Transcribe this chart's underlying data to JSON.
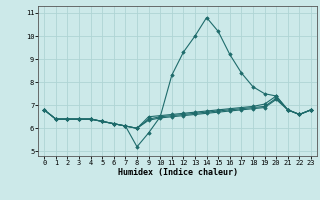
{
  "title": "",
  "xlabel": "Humidex (Indice chaleur)",
  "xlim": [
    -0.5,
    23.5
  ],
  "ylim": [
    4.8,
    11.3
  ],
  "yticks": [
    5,
    6,
    7,
    8,
    9,
    10,
    11
  ],
  "xticks": [
    0,
    1,
    2,
    3,
    4,
    5,
    6,
    7,
    8,
    9,
    10,
    11,
    12,
    13,
    14,
    15,
    16,
    17,
    18,
    19,
    20,
    21,
    22,
    23
  ],
  "bg_color": "#cce9e9",
  "grid_color": "#afd4d4",
  "line_color": "#1e6b6b",
  "series": [
    [
      6.8,
      6.4,
      6.4,
      6.4,
      6.4,
      6.3,
      6.2,
      6.1,
      5.2,
      5.8,
      6.5,
      8.3,
      9.3,
      10.0,
      10.8,
      10.2,
      9.2,
      8.4,
      7.8,
      7.5,
      7.4,
      6.8,
      6.6,
      6.8
    ],
    [
      6.8,
      6.4,
      6.4,
      6.4,
      6.4,
      6.3,
      6.2,
      6.1,
      6.0,
      6.5,
      6.55,
      6.6,
      6.65,
      6.7,
      6.75,
      6.8,
      6.85,
      6.9,
      6.95,
      7.05,
      7.4,
      6.8,
      6.6,
      6.8
    ],
    [
      6.8,
      6.4,
      6.4,
      6.4,
      6.4,
      6.3,
      6.2,
      6.1,
      6.0,
      6.4,
      6.5,
      6.55,
      6.6,
      6.65,
      6.7,
      6.75,
      6.8,
      6.85,
      6.9,
      6.95,
      7.3,
      6.8,
      6.6,
      6.8
    ],
    [
      6.8,
      6.4,
      6.4,
      6.4,
      6.4,
      6.3,
      6.2,
      6.1,
      6.0,
      6.35,
      6.45,
      6.5,
      6.55,
      6.6,
      6.65,
      6.7,
      6.75,
      6.8,
      6.85,
      6.9,
      7.25,
      6.8,
      6.6,
      6.8
    ]
  ]
}
